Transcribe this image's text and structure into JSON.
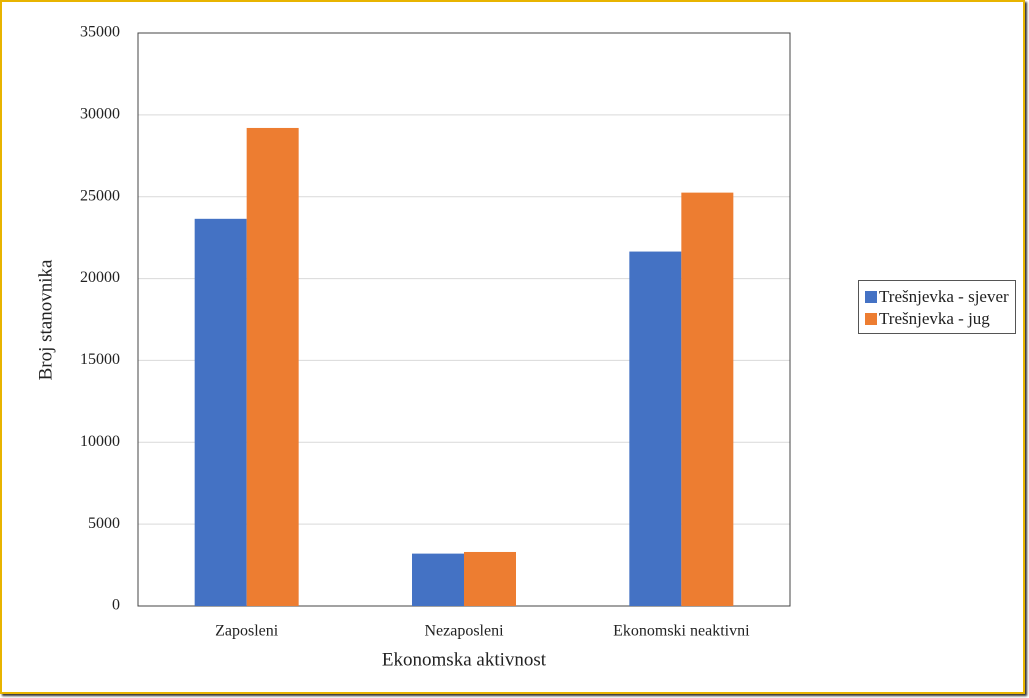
{
  "chart_data": {
    "type": "bar",
    "x_label": "Ekonomska aktivnost",
    "y_label": "Broj stanovnika",
    "categories": [
      "Zaposleni",
      "Nezaposleni",
      "Ekonomski neaktivni"
    ],
    "series": [
      {
        "name": "Trešnjevka - sjever",
        "color": "#4472c4",
        "values": [
          23650,
          3200,
          21650
        ]
      },
      {
        "name": "Trešnjevka - jug",
        "color": "#ed7d31",
        "values": [
          29200,
          3300,
          25250
        ]
      }
    ],
    "ylim": [
      0,
      35000
    ],
    "yticks": [
      0,
      5000,
      10000,
      15000,
      20000,
      25000,
      30000,
      35000
    ],
    "grid": true
  }
}
